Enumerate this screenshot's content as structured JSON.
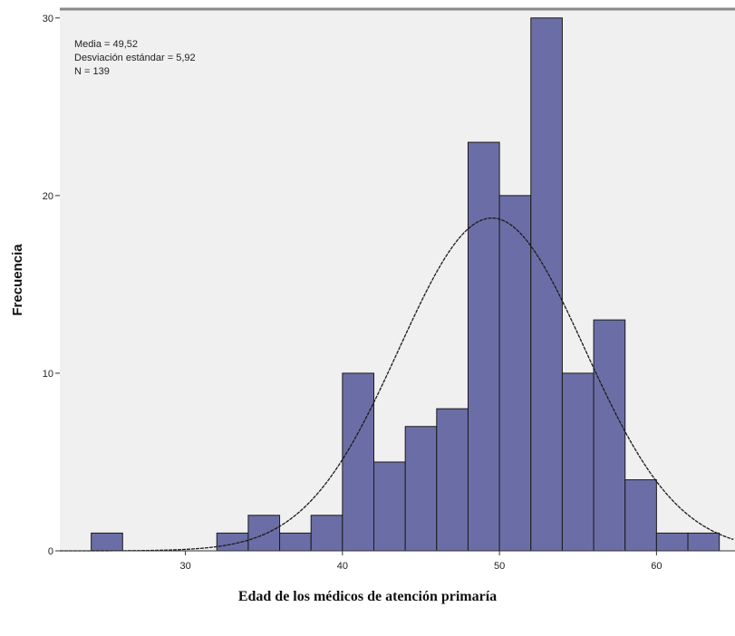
{
  "chart_data": {
    "type": "bar",
    "subtype": "histogram",
    "bin_width": 2,
    "bins": [
      {
        "start": 24,
        "end": 26,
        "count": 1
      },
      {
        "start": 32,
        "end": 34,
        "count": 1
      },
      {
        "start": 34,
        "end": 36,
        "count": 2
      },
      {
        "start": 36,
        "end": 38,
        "count": 1
      },
      {
        "start": 38,
        "end": 40,
        "count": 2
      },
      {
        "start": 40,
        "end": 42,
        "count": 10
      },
      {
        "start": 42,
        "end": 44,
        "count": 5
      },
      {
        "start": 44,
        "end": 46,
        "count": 7
      },
      {
        "start": 46,
        "end": 48,
        "count": 8
      },
      {
        "start": 48,
        "end": 50,
        "count": 23
      },
      {
        "start": 50,
        "end": 52,
        "count": 20
      },
      {
        "start": 52,
        "end": 54,
        "count": 30
      },
      {
        "start": 54,
        "end": 56,
        "count": 10
      },
      {
        "start": 56,
        "end": 58,
        "count": 13
      },
      {
        "start": 58,
        "end": 60,
        "count": 4
      },
      {
        "start": 60,
        "end": 62,
        "count": 1
      },
      {
        "start": 62,
        "end": 64,
        "count": 1
      }
    ],
    "normal_curve": {
      "mean": 49.52,
      "sd": 5.92,
      "n": 139
    },
    "stats_text": [
      "Media = 49,52",
      "Desviación estándar = 5,92",
      "N = 139"
    ],
    "xlabel": "Edad de los médicos de atención primaría",
    "ylabel": "Frecuencia",
    "xlim": [
      22,
      65
    ],
    "ylim": [
      0,
      30.5
    ],
    "x_ticks": [
      30,
      40,
      50,
      60
    ],
    "x_tick_labels": [
      "30",
      "40",
      "50",
      "60"
    ],
    "y_ticks": [
      0,
      10,
      20,
      30
    ],
    "y_tick_labels": [
      "0",
      "10",
      "20",
      "30"
    ],
    "colors": {
      "bar_fill": "#6b6ea6",
      "bar_stroke": "#1a1a1a",
      "plot_background": "#f0f0f0",
      "curve": "#1a1a1a"
    },
    "legend": "none",
    "grid": false
  }
}
